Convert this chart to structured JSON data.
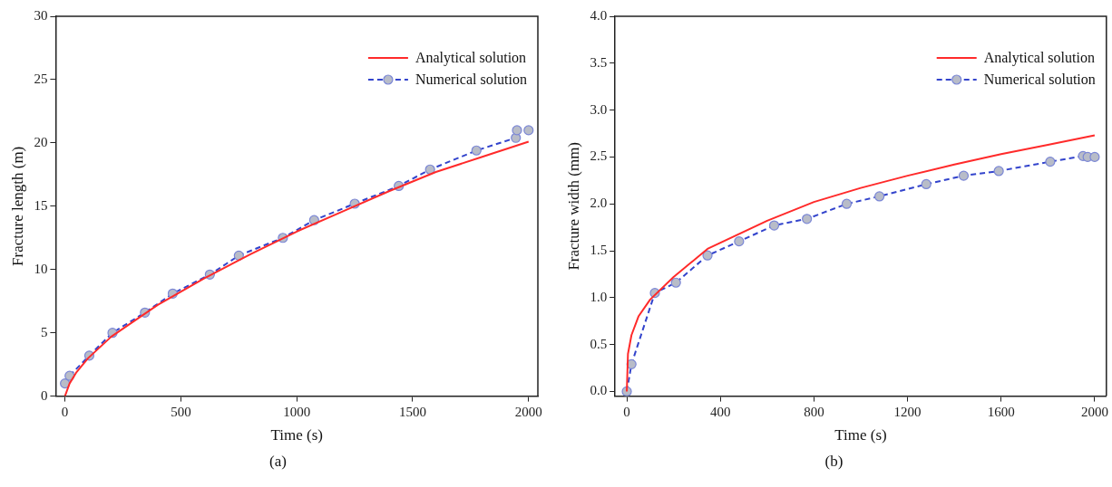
{
  "chart_data": [
    {
      "type": "line",
      "xlabel": "Time (s)",
      "ylabel": "Fracture length (m)",
      "annotations": [
        "(a)"
      ],
      "legend": "top right",
      "grid": false,
      "xlim": [
        -40,
        2040
      ],
      "xticks": [
        0,
        500,
        1000,
        1500,
        2000
      ],
      "ylim": [
        0,
        30
      ],
      "yticks": [
        0,
        5,
        10,
        15,
        20,
        25,
        30
      ],
      "series": [
        {
          "name": "Analytical solution",
          "color": "#ff2a2a",
          "marker": "none",
          "line_style": "solid",
          "x": [
            0,
            20,
            50,
            100,
            200,
            400,
            600,
            800,
            1000,
            1200,
            1400,
            1600,
            1800,
            2000
          ],
          "values": [
            0,
            1.0,
            1.9,
            3.0,
            4.7,
            7.2,
            9.3,
            11.2,
            13.0,
            14.6,
            16.2,
            17.7,
            18.9,
            20.1
          ]
        },
        {
          "name": "Numerical solution",
          "color": "#3344cc",
          "marker": "circle",
          "line_style": "dashed",
          "x": [
            0,
            20,
            105,
            205,
            345,
            465,
            625,
            750,
            940,
            1075,
            1250,
            1440,
            1575,
            1775,
            1945,
            1950,
            2000
          ],
          "values": [
            1.0,
            1.6,
            3.2,
            5.0,
            6.6,
            8.1,
            9.6,
            11.1,
            12.5,
            13.9,
            15.2,
            16.6,
            17.9,
            19.4,
            20.4,
            21.0,
            21.0
          ]
        }
      ]
    },
    {
      "type": "line",
      "xlabel": "Time (s)",
      "ylabel": "Fracture width (mm)",
      "annotations": [
        "(b)"
      ],
      "legend": "top right",
      "grid": false,
      "xlim": [
        -50,
        2050
      ],
      "xticks": [
        0,
        400,
        800,
        1200,
        1600,
        2000
      ],
      "ylim": [
        -0.05,
        4.0
      ],
      "yticks": [
        {
          "value": 0,
          "label": "0.0"
        },
        {
          "value": 0.5,
          "label": "0.5"
        },
        {
          "value": 1,
          "label": "1.0"
        },
        {
          "value": 1.5,
          "label": "1.5"
        },
        {
          "value": 2,
          "label": "2.0"
        },
        {
          "value": 2.5,
          "label": "2.5"
        },
        {
          "value": 3,
          "label": "3.0"
        },
        {
          "value": 3.5,
          "label": "3.5"
        },
        {
          "value": 4,
          "label": "4.0"
        }
      ],
      "series": [
        {
          "name": "Analytical solution",
          "color": "#ff2a2a",
          "marker": "none",
          "line_style": "solid",
          "x": [
            0,
            5,
            20,
            50,
            100,
            200,
            345,
            600,
            800,
            1000,
            1200,
            1400,
            1600,
            1800,
            2000
          ],
          "values": [
            0,
            0.4,
            0.6,
            0.8,
            0.98,
            1.22,
            1.52,
            1.82,
            2.02,
            2.17,
            2.3,
            2.42,
            2.53,
            2.63,
            2.73
          ]
        },
        {
          "name": "Numerical solution",
          "color": "#3344cc",
          "marker": "circle",
          "line_style": "dashed",
          "x": [
            0,
            20,
            120,
            210,
            345,
            480,
            630,
            770,
            940,
            1080,
            1280,
            1440,
            1590,
            1810,
            1950,
            1970,
            2000
          ],
          "values": [
            0,
            0.29,
            1.05,
            1.16,
            1.45,
            1.6,
            1.77,
            1.84,
            2.0,
            2.08,
            2.21,
            2.3,
            2.35,
            2.45,
            2.51,
            2.5,
            2.5
          ]
        }
      ]
    }
  ]
}
